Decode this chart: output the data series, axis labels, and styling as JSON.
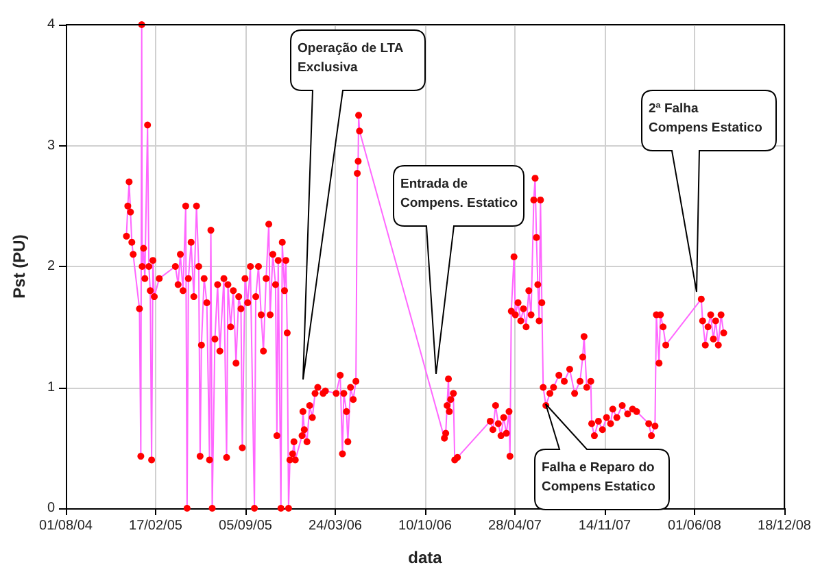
{
  "chart_data": {
    "type": "line",
    "xlabel": "data",
    "ylabel": "Pst (PU)",
    "x": [
      "2004-12-14",
      "2004-12-17",
      "2004-12-20",
      "2004-12-23",
      "2004-12-26",
      "2004-12-29",
      "2005-01-12",
      "2005-01-15",
      "2005-01-17",
      "2005-01-18",
      "2005-01-21",
      "2005-01-24",
      "2005-01-30",
      "2005-02-02",
      "2005-02-05",
      "2005-02-08",
      "2005-02-11",
      "2005-02-14",
      "2005-02-25",
      "2005-04-02",
      "2005-04-08",
      "2005-04-13",
      "2005-04-19",
      "2005-04-25",
      "2005-04-28",
      "2005-05-01",
      "2005-05-07",
      "2005-05-13",
      "2005-05-19",
      "2005-05-24",
      "2005-05-27",
      "2005-05-30",
      "2005-06-05",
      "2005-06-11",
      "2005-06-17",
      "2005-06-20",
      "2005-06-23",
      "2005-06-29",
      "2005-07-05",
      "2005-07-10",
      "2005-07-19",
      "2005-07-25",
      "2005-07-28",
      "2005-08-03",
      "2005-08-09",
      "2005-08-15",
      "2005-08-21",
      "2005-08-26",
      "2005-08-29",
      "2005-09-04",
      "2005-09-10",
      "2005-09-16",
      "2005-09-25",
      "2005-09-28",
      "2005-10-04",
      "2005-10-10",
      "2005-10-15",
      "2005-10-21",
      "2005-10-27",
      "2005-10-30",
      "2005-11-05",
      "2005-11-11",
      "2005-11-14",
      "2005-11-17",
      "2005-11-23",
      "2005-11-26",
      "2005-12-01",
      "2005-12-04",
      "2005-12-07",
      "2005-12-10",
      "2005-12-13",
      "2005-12-19",
      "2005-12-22",
      "2005-12-25",
      "2006-01-09",
      "2006-01-11",
      "2006-01-14",
      "2006-01-20",
      "2006-01-26",
      "2006-02-01",
      "2006-02-07",
      "2006-02-13",
      "2006-02-25",
      "2006-03-02",
      "2006-03-26",
      "2006-04-04",
      "2006-04-09",
      "2006-04-12",
      "2006-04-18",
      "2006-04-21",
      "2006-04-27",
      "2006-05-03",
      "2006-05-09",
      "2006-05-12",
      "2006-05-14",
      "2006-05-15",
      "2006-05-17",
      "2006-11-22",
      "2006-11-25",
      "2006-11-28",
      "2006-12-01",
      "2006-12-03",
      "2006-12-06",
      "2006-12-12",
      "2006-12-15",
      "2006-12-21",
      "2007-03-04",
      "2007-03-10",
      "2007-03-16",
      "2007-03-22",
      "2007-03-28",
      "2007-04-03",
      "2007-04-09",
      "2007-04-15",
      "2007-04-17",
      "2007-04-20",
      "2007-04-26",
      "2007-04-29",
      "2007-05-05",
      "2007-05-11",
      "2007-05-17",
      "2007-05-23",
      "2007-05-29",
      "2007-06-03",
      "2007-06-09",
      "2007-06-12",
      "2007-06-15",
      "2007-06-18",
      "2007-06-21",
      "2007-06-24",
      "2007-06-27",
      "2007-06-30",
      "2007-07-06",
      "2007-07-15",
      "2007-07-23",
      "2007-08-04",
      "2007-08-16",
      "2007-08-28",
      "2007-09-08",
      "2007-09-20",
      "2007-09-26",
      "2007-09-29",
      "2007-10-05",
      "2007-10-14",
      "2007-10-16",
      "2007-10-22",
      "2007-10-31",
      "2007-11-09",
      "2007-11-18",
      "2007-11-27",
      "2007-12-02",
      "2007-12-11",
      "2007-12-23",
      "2008-01-04",
      "2008-01-15",
      "2008-01-24",
      "2008-02-20",
      "2008-02-26",
      "2008-03-05",
      "2008-03-08",
      "2008-03-14",
      "2008-03-17",
      "2008-03-23",
      "2008-03-29",
      "2008-06-16",
      "2008-06-19",
      "2008-06-25",
      "2008-07-01",
      "2008-07-07",
      "2008-07-13",
      "2008-07-18",
      "2008-07-24",
      "2008-07-30",
      "2008-08-05"
    ],
    "series": [
      {
        "color": "#ff0000",
        "values": [
          2.25,
          2.5,
          2.7,
          2.45,
          2.2,
          2.1,
          1.65,
          0.43,
          4.0,
          2.0,
          2.15,
          1.9,
          3.17,
          2.0,
          1.8,
          0.4,
          2.05,
          1.75,
          1.9,
          2.0,
          1.85,
          2.1,
          1.8,
          2.5,
          0,
          1.9,
          2.2,
          1.75,
          2.5,
          2.0,
          0.43,
          1.35,
          1.9,
          1.7,
          0.4,
          2.3,
          0,
          1.4,
          1.85,
          1.3,
          1.9,
          0.42,
          1.85,
          1.5,
          1.8,
          1.2,
          1.75,
          1.65,
          0.5,
          1.9,
          1.7,
          2.0,
          0,
          1.75,
          2.0,
          1.6,
          1.3,
          1.9,
          2.35,
          1.6,
          2.1,
          1.85,
          0.6,
          2.05,
          0,
          2.2,
          1.8,
          2.05,
          1.45,
          0,
          0.4,
          0.45,
          0.55,
          0.4,
          0.6,
          0.8,
          0.65,
          0.55,
          0.85,
          0.75,
          0.95,
          1.0,
          0.95,
          0.97,
          0.95,
          1.1,
          0.45,
          0.95,
          0.8,
          0.55,
          1.0,
          0.9,
          1.05,
          2.77,
          2.87,
          3.25,
          3.12,
          0.58,
          0.62,
          0.85,
          1.07,
          0.8,
          0.9,
          0.95,
          0.4,
          0.42,
          0.72,
          0.65,
          0.85,
          0.7,
          0.6,
          0.75,
          0.62,
          0.8,
          0.43,
          1.63,
          2.08,
          1.6,
          1.7,
          1.55,
          1.65,
          1.5,
          1.8,
          1.6,
          2.55,
          2.73,
          2.24,
          1.85,
          1.55,
          2.55,
          1.7,
          1.0,
          0.85,
          0.95,
          1.0,
          1.1,
          1.05,
          1.15,
          0.95,
          1.05,
          1.25,
          1.42,
          1.0,
          1.05,
          0.7,
          0.6,
          0.72,
          0.65,
          0.75,
          0.7,
          0.82,
          0.75,
          0.85,
          0.78,
          0.82,
          0.8,
          0.7,
          0.6,
          0.68,
          1.6,
          1.2,
          1.6,
          1.5,
          1.35,
          1.73,
          1.55,
          1.35,
          1.5,
          1.6,
          1.4,
          1.55,
          1.35,
          1.6,
          1.45
        ]
      }
    ],
    "xlim": [
      "2004-08-01",
      "2008-12-18"
    ],
    "xticks": [
      {
        "value": "2004-08-01",
        "label": "01/08/04"
      },
      {
        "value": "2005-02-17",
        "label": "17/02/05"
      },
      {
        "value": "2005-09-05",
        "label": "05/09/05"
      },
      {
        "value": "2006-03-24",
        "label": "24/03/06"
      },
      {
        "value": "2006-10-10",
        "label": "10/10/06"
      },
      {
        "value": "2007-04-28",
        "label": "28/04/07"
      },
      {
        "value": "2007-11-14",
        "label": "14/11/07"
      },
      {
        "value": "2008-06-01",
        "label": "01/06/08"
      },
      {
        "value": "2008-12-18",
        "label": "18/12/08"
      }
    ],
    "ylim": [
      0,
      4
    ],
    "yticks": [
      0,
      1,
      2,
      3,
      4
    ],
    "grid": true,
    "marker": "circle",
    "line_style": "solid",
    "annotations": [
      "Operação de LTA\nExclusiva",
      "Entrada de\nCompens. Estatico",
      "Falha e Reparo do\nCompens Estatico",
      "2ª Falha\nCompens Estatico"
    ]
  }
}
